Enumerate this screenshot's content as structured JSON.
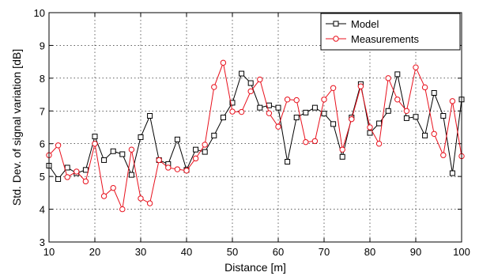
{
  "chart_data": {
    "type": "line",
    "title": "",
    "xlabel": "Distance [m]",
    "ylabel": "Std. Dev. of signal variation [dB]",
    "xlim": [
      10,
      100
    ],
    "ylim": [
      3,
      10
    ],
    "xticks": [
      10,
      20,
      30,
      40,
      50,
      60,
      70,
      80,
      90,
      100
    ],
    "yticks": [
      3,
      4,
      5,
      6,
      7,
      8,
      9,
      10
    ],
    "grid": true,
    "legend_position": "top-right",
    "x": [
      10,
      12,
      14,
      16,
      18,
      20,
      22,
      24,
      26,
      28,
      30,
      32,
      34,
      36,
      38,
      40,
      42,
      44,
      46,
      48,
      50,
      52,
      54,
      56,
      58,
      60,
      62,
      64,
      66,
      68,
      70,
      72,
      74,
      76,
      78,
      80,
      82,
      84,
      86,
      88,
      90,
      92,
      94,
      96,
      98,
      100
    ],
    "series": [
      {
        "name": "Model",
        "color": "#000000",
        "marker": "square",
        "values": [
          5.33,
          4.92,
          5.27,
          5.1,
          5.2,
          6.22,
          5.5,
          5.77,
          5.68,
          5.05,
          6.2,
          6.85,
          5.5,
          5.38,
          6.13,
          5.2,
          5.82,
          5.75,
          6.25,
          6.8,
          7.25,
          8.14,
          7.85,
          7.1,
          7.17,
          7.1,
          5.45,
          6.8,
          6.95,
          7.1,
          6.92,
          6.6,
          5.6,
          6.8,
          7.82,
          6.33,
          6.62,
          7.0,
          8.12,
          6.78,
          6.82,
          6.25,
          7.55,
          6.85,
          5.1,
          7.35
        ]
      },
      {
        "name": "Measurements",
        "color": "#e8101c",
        "marker": "circle",
        "values": [
          5.65,
          5.95,
          4.98,
          5.15,
          4.85,
          6.0,
          4.4,
          4.65,
          4.0,
          5.82,
          4.33,
          4.18,
          5.5,
          5.27,
          5.22,
          5.18,
          5.55,
          5.97,
          7.73,
          8.47,
          6.98,
          6.97,
          7.6,
          7.96,
          6.93,
          6.52,
          7.35,
          7.33,
          6.05,
          6.08,
          7.35,
          7.7,
          5.82,
          6.75,
          7.75,
          6.5,
          6.0,
          8.0,
          7.35,
          7.0,
          8.33,
          7.72,
          6.3,
          5.65,
          7.3,
          5.62
        ]
      }
    ]
  }
}
